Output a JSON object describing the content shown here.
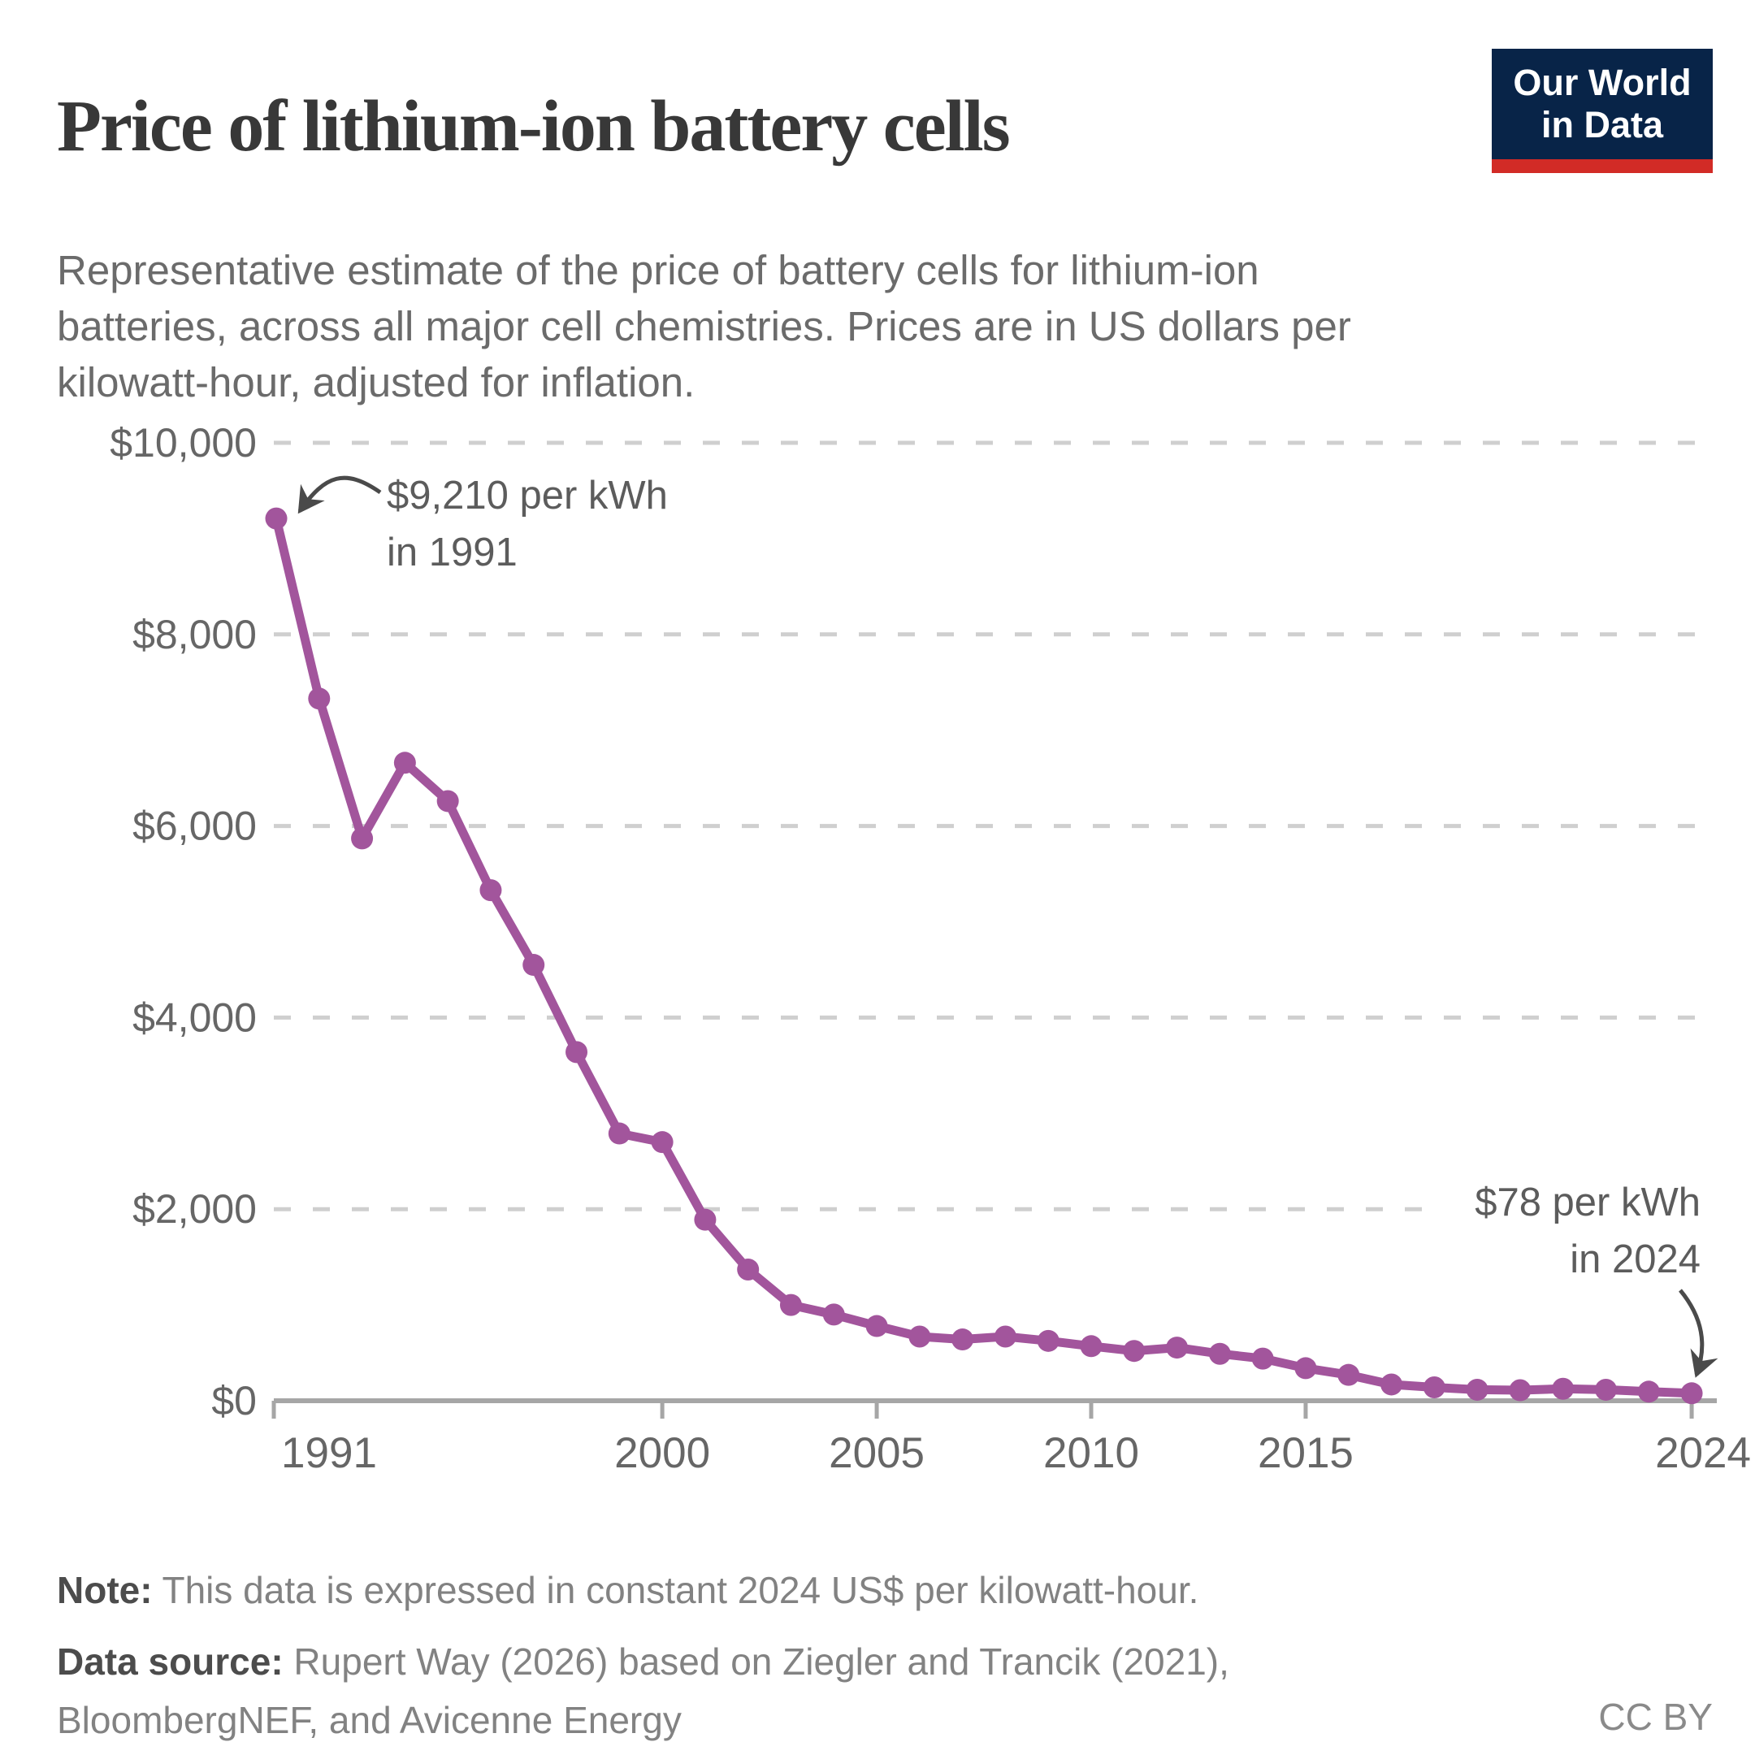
{
  "header": {
    "title": "Price of lithium-ion battery cells",
    "logo": {
      "line1": "Our World",
      "line2": "in Data"
    }
  },
  "subtitle": {
    "lines": [
      "Representative estimate of the price of battery cells for lithium-ion",
      "batteries, across all major cell chemistries. Prices are in US dollars per",
      "kilowatt-hour, adjusted for inflation."
    ]
  },
  "colors": {
    "series_purple": "#a2559c",
    "logo_navy": "#082448",
    "logo_red": "#d22b26",
    "gridline": "#cfcfcf",
    "axis": "#a6a6a6",
    "axis_text": "#666666",
    "annotation_text": "#5c5c5c",
    "arrow": "#4a4a4a"
  },
  "chart_data": {
    "type": "line",
    "title": "Price of lithium-ion battery cells",
    "xlabel": "",
    "ylabel": "US dollars per kilowatt-hour",
    "ylim": [
      0,
      10000
    ],
    "xlim": [
      1991,
      2024
    ],
    "grid": "horizontal dashed",
    "legend_position": "none",
    "x": [
      1991,
      1992,
      1993,
      1994,
      1995,
      1996,
      1997,
      1998,
      1999,
      2000,
      2001,
      2002,
      2003,
      2004,
      2005,
      2006,
      2007,
      2008,
      2009,
      2010,
      2011,
      2012,
      2013,
      2014,
      2015,
      2016,
      2017,
      2018,
      2019,
      2020,
      2021,
      2022,
      2023,
      2024
    ],
    "series": [
      {
        "name": "Price of lithium-ion battery cells (constant 2024 US$ per kWh)",
        "color": "#a2559c",
        "values": [
          9210,
          7330,
          5870,
          6660,
          6260,
          5330,
          4550,
          3640,
          2790,
          2700,
          1890,
          1370,
          1000,
          900,
          780,
          670,
          640,
          670,
          625,
          570,
          520,
          555,
          490,
          440,
          340,
          270,
          170,
          140,
          115,
          110,
          125,
          115,
          95,
          78
        ]
      }
    ],
    "yticks": [
      {
        "value": 0,
        "label": "$0"
      },
      {
        "value": 2000,
        "label": "$2,000"
      },
      {
        "value": 4000,
        "label": "$4,000"
      },
      {
        "value": 6000,
        "label": "$6,000"
      },
      {
        "value": 8000,
        "label": "$8,000"
      },
      {
        "value": 10000,
        "label": "$10,000"
      }
    ],
    "xticks": [
      {
        "value": 1991,
        "label": "1991"
      },
      {
        "value": 2000,
        "label": "2000"
      },
      {
        "value": 2005,
        "label": "2005"
      },
      {
        "value": 2010,
        "label": "2010"
      },
      {
        "value": 2015,
        "label": "2015"
      },
      {
        "value": 2024,
        "label": "2024"
      }
    ],
    "annotations": [
      {
        "id": "ann-1991",
        "line1": "$9,210 per kWh",
        "line2": "in 1991",
        "year": 1991,
        "value": 9210
      },
      {
        "id": "ann-2024",
        "line1": "$78 per kWh",
        "line2": "in 2024",
        "year": 2024,
        "value": 78
      }
    ]
  },
  "footer": {
    "note_label": "Note:",
    "note_text": " This data is expressed in constant 2024 US$ per kilowatt-hour.",
    "source_label": "Data source:",
    "source_line1": " Rupert Way (2026) based on Ziegler and Trancik (2021),",
    "source_line2": "BloombergNEF, and Avicenne Energy",
    "license": "CC BY"
  }
}
